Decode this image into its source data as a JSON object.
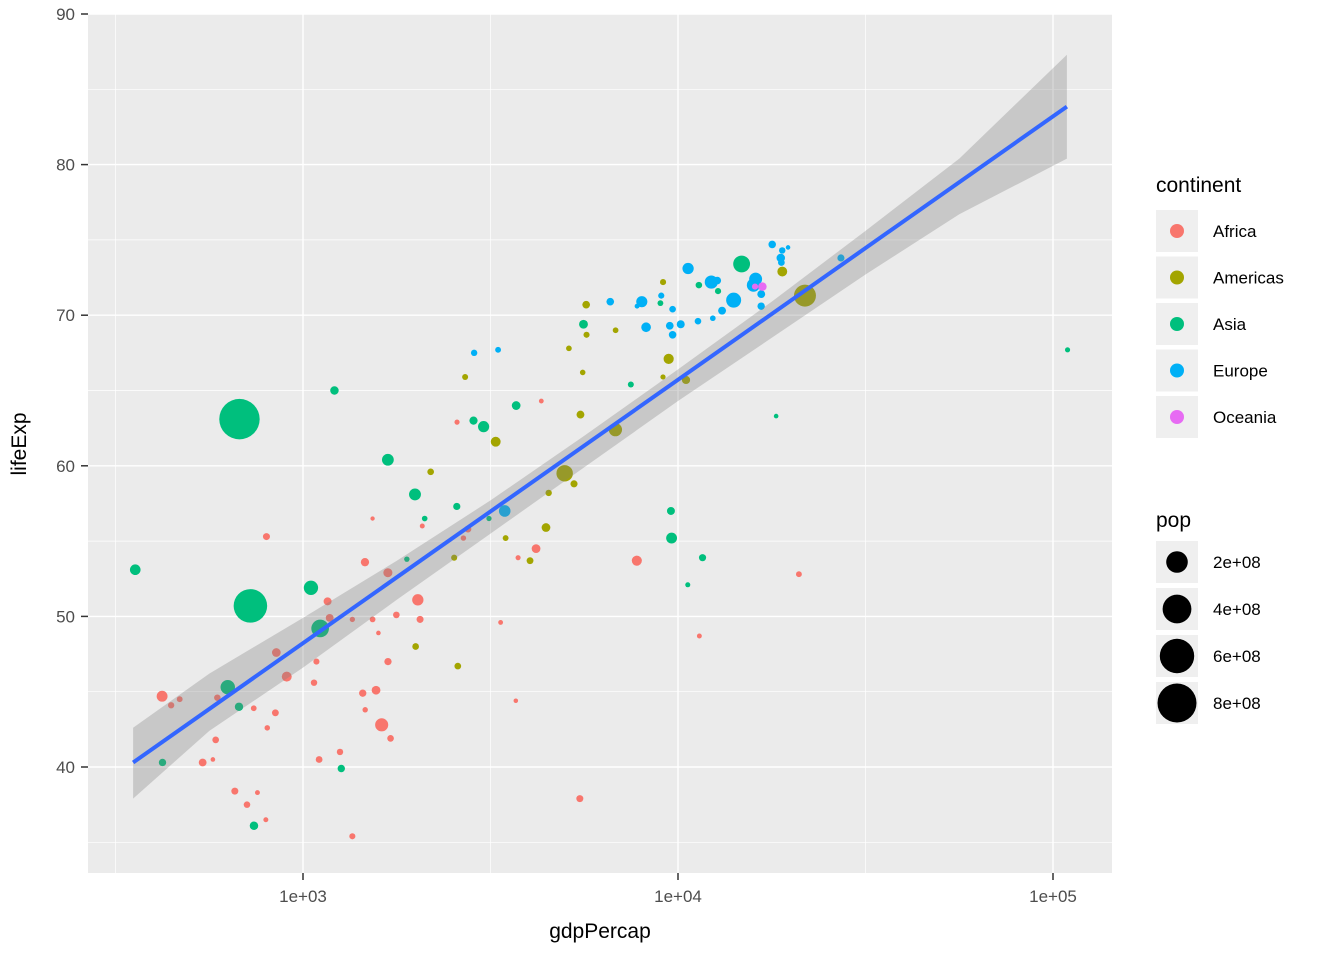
{
  "figure": {
    "background": "#FFFFFF",
    "panel_bg": "#EBEBEB",
    "grid_color": "#FFFFFF",
    "tick_color": "#333333",
    "axis_text_color": "#4D4D4D",
    "legend_key_bg": "#EFEFEF"
  },
  "axes": {
    "x": {
      "label": "gdpPercap",
      "scale": "log10",
      "tick_labels": [
        "1e+03",
        "1e+04",
        "1e+05"
      ],
      "tick_values": [
        1000,
        10000,
        100000
      ],
      "minor_values": [
        316.23,
        3162.3,
        31623
      ],
      "domain_log10": [
        2.427,
        5.157
      ]
    },
    "y": {
      "label": "lifeExp",
      "tick_labels": [
        "40",
        "50",
        "60",
        "70",
        "80",
        "90"
      ],
      "tick_values": [
        40,
        50,
        60,
        70,
        80,
        90
      ],
      "minor_values": [
        35,
        45,
        55,
        65,
        75,
        85
      ],
      "domain": [
        32.95,
        90.05
      ]
    }
  },
  "legends": {
    "continent": {
      "title": "continent",
      "items": [
        {
          "label": "Africa",
          "color": "#F8766D"
        },
        {
          "label": "Americas",
          "color": "#A3A500"
        },
        {
          "label": "Asia",
          "color": "#00BF7D"
        },
        {
          "label": "Europe",
          "color": "#00B0F6"
        },
        {
          "label": "Oceania",
          "color": "#E76BF3"
        }
      ]
    },
    "pop": {
      "title": "pop",
      "items": [
        {
          "label": "2e+08",
          "value": 200000000
        },
        {
          "label": "4e+08",
          "value": 400000000
        },
        {
          "label": "6e+08",
          "value": 600000000
        },
        {
          "label": "8e+08",
          "value": 800000000
        }
      ]
    }
  },
  "smooth": {
    "line_color": "#3366FF",
    "ribbon_color": "#808080",
    "ribbon_opacity": 0.32,
    "line": [
      [
        2.547,
        40.3
      ],
      [
        5.037,
        83.85
      ]
    ],
    "ribbon_upper": [
      [
        2.547,
        42.6
      ],
      [
        2.75,
        46.2
      ],
      [
        3.0,
        49.9
      ],
      [
        3.25,
        53.7
      ],
      [
        3.5,
        57.7
      ],
      [
        3.75,
        62.0
      ],
      [
        4.0,
        66.4
      ],
      [
        4.25,
        70.9
      ],
      [
        4.5,
        75.6
      ],
      [
        4.75,
        80.4
      ],
      [
        5.037,
        87.3
      ]
    ],
    "ribbon_lower": [
      [
        2.547,
        37.9
      ],
      [
        2.75,
        42.4
      ],
      [
        3.0,
        46.6
      ],
      [
        3.25,
        51.1
      ],
      [
        3.5,
        55.5
      ],
      [
        3.75,
        59.9
      ],
      [
        4.0,
        64.3
      ],
      [
        4.25,
        68.5
      ],
      [
        4.5,
        72.7
      ],
      [
        4.75,
        76.7
      ],
      [
        5.037,
        80.4
      ]
    ]
  },
  "chart_data": {
    "type": "scatter",
    "x_field": "gdpPercap",
    "y_field": "lifeExp",
    "size_field": "pop",
    "color_field": "continent",
    "xlabel": "gdpPercap",
    "ylabel": "lifeExp",
    "x_scale": "log10",
    "grid": true,
    "legend_position": "right",
    "point_format": [
      "gdpPercap",
      "lifeExp",
      "pop",
      "continent"
    ],
    "points": [
      [
        4183,
        54.5,
        14760000,
        "Africa"
      ],
      [
        5473,
        37.9,
        5890000,
        "Africa"
      ],
      [
        1086,
        47.0,
        2760000,
        "Africa"
      ],
      [
        2080,
        56.0,
        620000,
        "Africa"
      ],
      [
        844,
        43.6,
        5430000,
        "Africa"
      ],
      [
        445,
        44.1,
        3530000,
        "Africa"
      ],
      [
        1685,
        47.0,
        6990000,
        "Africa"
      ],
      [
        739,
        43.9,
        1990000,
        "Africa"
      ],
      [
        1070,
        45.6,
        3870000,
        "Africa"
      ],
      [
        1589,
        48.9,
        250000,
        "Africa"
      ],
      [
        905,
        46.0,
        23010000,
        "Africa"
      ],
      [
        2678,
        55.2,
        1340000,
        "Africa"
      ],
      [
        2052,
        49.8,
        6070000,
        "Africa"
      ],
      [
        3694,
        44.4,
        190000,
        "Africa"
      ],
      [
        2024,
        51.1,
        34810000,
        "Africa"
      ],
      [
        575,
        40.5,
        270000,
        "Africa"
      ],
      [
        469,
        44.5,
        2260000,
        "Africa"
      ],
      [
        421,
        44.7,
        30770000,
        "Africa"
      ],
      [
        11402,
        48.7,
        540000,
        "Africa"
      ],
      [
        756,
        38.3,
        520000,
        "Africa"
      ],
      [
        1178,
        49.9,
        9350000,
        "Africa"
      ],
      [
        709,
        37.5,
        4230000,
        "Africa"
      ],
      [
        796,
        36.5,
        630000,
        "Africa"
      ],
      [
        1463,
        53.6,
        12040000,
        "Africa"
      ],
      [
        1354,
        49.8,
        1120000,
        "Africa"
      ],
      [
        803,
        42.6,
        1480000,
        "Africa"
      ],
      [
        21011,
        52.8,
        2180000,
        "Africa"
      ],
      [
        1443,
        44.9,
        7080000,
        "Africa"
      ],
      [
        585,
        41.8,
        4730000,
        "Africa"
      ],
      [
        658,
        38.4,
        5760000,
        "Africa"
      ],
      [
        1465,
        43.8,
        1330000,
        "Africa"
      ],
      [
        2575,
        62.9,
        850000,
        "Africa"
      ],
      [
        1684,
        52.9,
        16660000,
        "Africa"
      ],
      [
        540,
        40.3,
        9530000,
        "Africa"
      ],
      [
        3746,
        53.9,
        820000,
        "Africa"
      ],
      [
        1104,
        40.5,
        5060000,
        "Africa"
      ],
      [
        1621,
        42.8,
        53740000,
        "Africa"
      ],
      [
        4320,
        64.3,
        460000,
        "Africa"
      ],
      [
        591,
        44.6,
        3990000,
        "Africa"
      ],
      [
        1533,
        56.5,
        80000,
        "Africa"
      ],
      [
        1712,
        41.9,
        4590000,
        "Africa"
      ],
      [
        1354,
        35.4,
        2880000,
        "Africa"
      ],
      [
        1255,
        41.0,
        3840000,
        "Africa"
      ],
      [
        7766,
        53.7,
        23930000,
        "Africa"
      ],
      [
        1566,
        45.1,
        14600000,
        "Africa"
      ],
      [
        3365,
        49.6,
        480000,
        "Africa"
      ],
      [
        849,
        47.6,
        14710000,
        "Africa"
      ],
      [
        1533,
        49.8,
        2060000,
        "Africa"
      ],
      [
        2753,
        55.8,
        5300000,
        "Africa"
      ],
      [
        1163,
        51.0,
        10190000,
        "Africa"
      ],
      [
        1774,
        50.1,
        4510000,
        "Africa"
      ],
      [
        799,
        55.3,
        5860000,
        "Africa"
      ],
      [
        9443,
        67.1,
        24780000,
        "Americas"
      ],
      [
        2587,
        46.7,
        4570000,
        "Americas"
      ],
      [
        4986,
        59.5,
        100840000,
        "Americas"
      ],
      [
        18971,
        72.9,
        22280000,
        "Americas"
      ],
      [
        5494,
        63.4,
        9720000,
        "Americas"
      ],
      [
        3265,
        61.6,
        22540000,
        "Americas"
      ],
      [
        5118,
        67.8,
        1830000,
        "Americas"
      ],
      [
        5690,
        70.7,
        8830000,
        "Americas"
      ],
      [
        2190,
        59.6,
        4670000,
        "Americas"
      ],
      [
        5281,
        58.8,
        6300000,
        "Americas"
      ],
      [
        4520,
        58.2,
        3790000,
        "Americas"
      ],
      [
        4031,
        53.7,
        5150000,
        "Americas"
      ],
      [
        1997,
        48.0,
        4690000,
        "Americas"
      ],
      [
        2530,
        53.9,
        2830000,
        "Americas"
      ],
      [
        6817,
        69.0,
        1990000,
        "Americas"
      ],
      [
        6809,
        62.4,
        55980000,
        "Americas"
      ],
      [
        3470,
        55.2,
        2180000,
        "Americas"
      ],
      [
        5570,
        66.2,
        1620000,
        "Americas"
      ],
      [
        2706,
        65.9,
        2610000,
        "Americas"
      ],
      [
        4446,
        55.9,
        14790000,
        "Americas"
      ],
      [
        9123,
        72.2,
        2850000,
        "Americas"
      ],
      [
        9120,
        65.9,
        980000,
        "Americas"
      ],
      [
        21806,
        71.3,
        209900000,
        "Americas"
      ],
      [
        5703,
        68.7,
        2830000,
        "Americas"
      ],
      [
        10504,
        65.7,
        11520000,
        "Americas"
      ],
      [
        740,
        36.1,
        13080000,
        "Asia"
      ],
      [
        18268,
        63.3,
        230000,
        "Asia"
      ],
      [
        630,
        45.3,
        70760000,
        "Asia"
      ],
      [
        422,
        40.3,
        7450000,
        "Asia"
      ],
      [
        677,
        63.1,
        862030000,
        "Asia"
      ],
      [
        11367,
        72.0,
        4120000,
        "Asia"
      ],
      [
        724,
        50.7,
        567000000,
        "Asia"
      ],
      [
        1111,
        49.2,
        121280000,
        "Asia"
      ],
      [
        9614,
        55.2,
        30610000,
        "Asia"
      ],
      [
        9576,
        57.0,
        10060000,
        "Asia"
      ],
      [
        12787,
        71.6,
        3100000,
        "Asia"
      ],
      [
        14779,
        73.4,
        107190000,
        "Asia"
      ],
      [
        2111,
        56.5,
        1720000,
        "Asia"
      ],
      [
        3702,
        64.0,
        14780000,
        "Asia"
      ],
      [
        3031,
        62.6,
        33510000,
        "Asia"
      ],
      [
        109348,
        67.7,
        840000,
        "Asia"
      ],
      [
        7486,
        65.4,
        2680000,
        "Asia"
      ],
      [
        2849,
        63.0,
        11440000,
        "Asia"
      ],
      [
        1892,
        53.8,
        1320000,
        "Asia"
      ],
      [
        357,
        53.1,
        28470000,
        "Asia"
      ],
      [
        675,
        44.0,
        12410000,
        "Asia"
      ],
      [
        10618,
        52.1,
        720000,
        "Asia"
      ],
      [
        1050,
        51.9,
        69180000,
        "Asia"
      ],
      [
        1989,
        58.1,
        40850000,
        "Asia"
      ],
      [
        11626,
        53.9,
        6470000,
        "Asia"
      ],
      [
        8976,
        70.8,
        2150000,
        "Asia"
      ],
      [
        1213,
        65.0,
        13020000,
        "Asia"
      ],
      [
        2571,
        57.3,
        6700000,
        "Asia"
      ],
      [
        5597,
        69.4,
        15230000,
        "Asia"
      ],
      [
        1684,
        60.4,
        39280000,
        "Asia"
      ],
      [
        700,
        50.3,
        44660000,
        "Asia"
      ],
      [
        3133,
        56.5,
        1090000,
        "Asia"
      ],
      [
        1265,
        39.9,
        7520000,
        "Asia"
      ],
      [
        3313,
        67.7,
        2260000,
        "Europe"
      ],
      [
        16662,
        70.6,
        7540000,
        "Europe"
      ],
      [
        16672,
        71.4,
        9710000,
        "Europe"
      ],
      [
        2860,
        67.5,
        3820000,
        "Europe"
      ],
      [
        6597,
        70.9,
        8580000,
        "Europe"
      ],
      [
        11305,
        69.6,
        4400000,
        "Europe"
      ],
      [
        13108,
        70.3,
        9860000,
        "Europe"
      ],
      [
        18866,
        73.5,
        4990000,
        "Europe"
      ],
      [
        14359,
        70.9,
        4640000,
        "Europe"
      ],
      [
        16107,
        72.4,
        51730000,
        "Europe"
      ],
      [
        14073,
        71.0,
        78720000,
        "Europe"
      ],
      [
        12725,
        72.3,
        8890000,
        "Europe"
      ],
      [
        10169,
        69.4,
        10390000,
        "Europe"
      ],
      [
        19655,
        74.5,
        210000,
        "Europe"
      ],
      [
        9023,
        71.3,
        3020000,
        "Europe"
      ],
      [
        12269,
        72.2,
        54370000,
        "Europe"
      ],
      [
        7778,
        70.6,
        530000,
        "Europe"
      ],
      [
        18795,
        73.8,
        13330000,
        "Europe"
      ],
      [
        18965,
        74.3,
        3930000,
        "Europe"
      ],
      [
        8007,
        70.9,
        33070000,
        "Europe"
      ],
      [
        9508,
        69.3,
        8970000,
        "Europe"
      ],
      [
        8221,
        69.2,
        20660000,
        "Europe"
      ],
      [
        9674,
        68.7,
        8310000,
        "Europe"
      ],
      [
        9674,
        70.4,
        4590000,
        "Europe"
      ],
      [
        12383,
        69.8,
        1750000,
        "Europe"
      ],
      [
        10639,
        73.1,
        34510000,
        "Europe"
      ],
      [
        17832,
        74.7,
        8120000,
        "Europe"
      ],
      [
        27195,
        73.8,
        6400000,
        "Europe"
      ],
      [
        3451,
        57.0,
        37490000,
        "Europe"
      ],
      [
        15895,
        72.0,
        56080000,
        "Europe"
      ],
      [
        16789,
        71.9,
        13180000,
        "Oceania"
      ],
      [
        16046,
        71.9,
        2930000,
        "Oceania"
      ]
    ]
  }
}
